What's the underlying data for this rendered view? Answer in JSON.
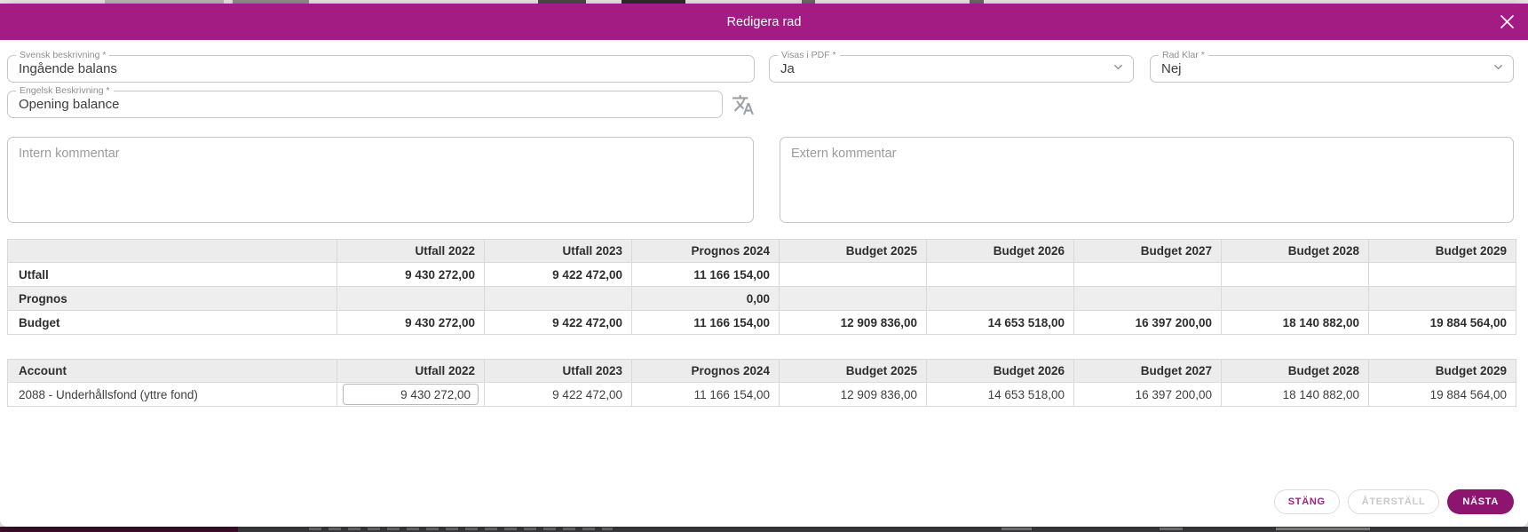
{
  "dialog": {
    "title": "Redigera rad"
  },
  "form": {
    "svensk_beskrivning": {
      "label": "Svensk beskrivning *",
      "value": "Ingående balans"
    },
    "engelsk_beskrivning": {
      "label": "Engelsk Beskrivning *",
      "value": "Opening balance"
    },
    "visas_i_pdf": {
      "label": "Visas i PDF *",
      "value": "Ja"
    },
    "rad_klar": {
      "label": "Rad Klar *",
      "value": "Nej"
    },
    "intern_kommentar": {
      "placeholder": "Intern kommentar",
      "value": ""
    },
    "extern_kommentar": {
      "placeholder": "Extern kommentar",
      "value": ""
    }
  },
  "summary_table": {
    "columns": [
      "",
      "Utfall 2022",
      "Utfall 2023",
      "Prognos 2024",
      "Budget 2025",
      "Budget 2026",
      "Budget 2027",
      "Budget 2028",
      "Budget 2029"
    ],
    "rows": [
      {
        "label": "Utfall",
        "values": [
          "9 430 272,00",
          "9 422 472,00",
          "11 166 154,00",
          "",
          "",
          "",
          "",
          ""
        ]
      },
      {
        "label": "Prognos",
        "values": [
          "",
          "",
          "0,00",
          "",
          "",
          "",
          "",
          ""
        ]
      },
      {
        "label": "Budget",
        "values": [
          "9 430 272,00",
          "9 422 472,00",
          "11 166 154,00",
          "12 909 836,00",
          "14 653 518,00",
          "16 397 200,00",
          "18 140 882,00",
          "19 884 564,00"
        ]
      }
    ]
  },
  "account_table": {
    "columns": [
      "Account",
      "Utfall 2022",
      "Utfall 2023",
      "Prognos 2024",
      "Budget 2025",
      "Budget 2026",
      "Budget 2027",
      "Budget 2028",
      "Budget 2029"
    ],
    "rows": [
      {
        "label": "2088 - Underhållsfond (yttre fond)",
        "editable_index": 0,
        "values": [
          "9 430 272,00",
          "9 422 472,00",
          "11 166 154,00",
          "12 909 836,00",
          "14 653 518,00",
          "16 397 200,00",
          "18 140 882,00",
          "19 884 564,00"
        ]
      }
    ]
  },
  "footer": {
    "close_label": "STÄNG",
    "reset_label": "ÅTERSTÄLL",
    "next_label": "NÄSTA"
  },
  "colors": {
    "header_bar": "#A21C84",
    "accent": "#A21C84",
    "primary_button": "#8D146F"
  }
}
